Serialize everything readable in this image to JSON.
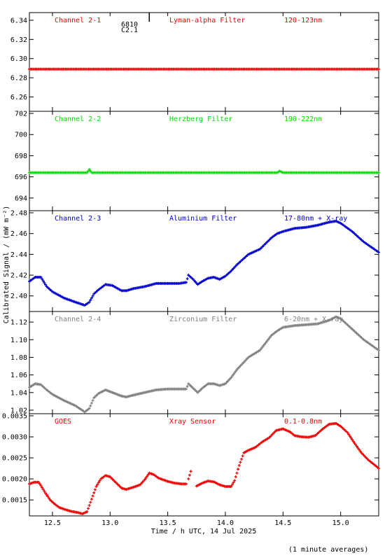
{
  "figure": {
    "ylabel": "Calibrated Signal / (mW m⁻²)",
    "xlabel": "Time / h UTC, 14 Jul 2025",
    "footer": "(1 minute averages)",
    "marker": {
      "label1": "6810",
      "label2": "C2.1",
      "x": 13.34
    }
  },
  "chart_data": [
    {
      "type": "scatter",
      "color": "#ee0000",
      "header": [
        "Channel 2-1",
        "Lyman-alpha Filter",
        "120-123nm"
      ],
      "xlim": [
        12.3,
        15.33
      ],
      "ylim": [
        6.245,
        6.348
      ],
      "yticks": [
        6.26,
        6.28,
        6.3,
        6.32,
        6.34
      ],
      "ytick_labels": [
        "6.26",
        "6.28",
        "6.30",
        "6.32",
        "6.34"
      ],
      "x": [
        12.3,
        15.33
      ],
      "y": [
        6.289,
        6.289
      ]
    },
    {
      "type": "scatter",
      "color": "#00dd00",
      "header": [
        "Channel 2-2",
        "Herzberg Filter",
        "190-222nm"
      ],
      "xlim": [
        12.3,
        15.33
      ],
      "ylim": [
        692.8,
        702.2
      ],
      "yticks": [
        694,
        696,
        698,
        700,
        702
      ],
      "ytick_labels": [
        "694",
        "696",
        "698",
        "700",
        "702"
      ],
      "x": [
        12.3,
        12.8,
        12.82,
        12.84,
        14.0,
        14.45,
        14.47,
        14.5,
        15.33
      ],
      "y": [
        696.4,
        696.4,
        696.7,
        696.4,
        696.4,
        696.4,
        696.55,
        696.4,
        696.4
      ]
    },
    {
      "type": "scatter",
      "color": "#0000cc",
      "header": [
        "Channel 2-3",
        "Aluminium Filter",
        "17-80nm + X-ray"
      ],
      "xlim": [
        12.3,
        15.33
      ],
      "ylim": [
        2.385,
        2.482
      ],
      "yticks": [
        2.4,
        2.42,
        2.44,
        2.46,
        2.48
      ],
      "ytick_labels": [
        "2.40",
        "2.42",
        "2.44",
        "2.46",
        "2.48"
      ],
      "x": [
        12.3,
        12.35,
        12.4,
        12.45,
        12.5,
        12.6,
        12.7,
        12.78,
        12.82,
        12.86,
        12.9,
        12.96,
        13.02,
        13.1,
        13.14,
        13.2,
        13.3,
        13.4,
        13.5,
        13.6,
        13.66,
        13.68,
        13.72,
        13.76,
        13.8,
        13.85,
        13.9,
        13.95,
        14.0,
        14.05,
        14.1,
        14.2,
        14.3,
        14.4,
        14.45,
        14.5,
        14.6,
        14.7,
        14.8,
        14.9,
        14.96,
        15.0,
        15.1,
        15.2,
        15.33
      ],
      "y": [
        2.414,
        2.418,
        2.418,
        2.409,
        2.404,
        2.398,
        2.394,
        2.391,
        2.394,
        2.402,
        2.406,
        2.411,
        2.41,
        2.405,
        2.405,
        2.407,
        2.409,
        2.412,
        2.412,
        2.412,
        2.413,
        2.42,
        2.416,
        2.411,
        2.414,
        2.417,
        2.418,
        2.416,
        2.419,
        2.424,
        2.43,
        2.44,
        2.445,
        2.456,
        2.46,
        2.462,
        2.465,
        2.466,
        2.468,
        2.471,
        2.472,
        2.47,
        2.462,
        2.452,
        2.442
      ]
    },
    {
      "type": "scatter",
      "color": "#808080",
      "header": [
        "Channel 2-4",
        "Zirconium Filter",
        "6-20nm + X-ray"
      ],
      "xlim": [
        12.3,
        15.33
      ],
      "ylim": [
        1.016,
        1.132
      ],
      "yticks": [
        1.02,
        1.04,
        1.06,
        1.08,
        1.1,
        1.12
      ],
      "ytick_labels": [
        "1.02",
        "1.04",
        "1.06",
        "1.08",
        "1.10",
        "1.12"
      ],
      "x": [
        12.3,
        12.35,
        12.4,
        12.45,
        12.5,
        12.6,
        12.7,
        12.78,
        12.82,
        12.86,
        12.9,
        12.96,
        13.02,
        13.1,
        13.14,
        13.2,
        13.3,
        13.4,
        13.5,
        13.6,
        13.66,
        13.68,
        13.72,
        13.76,
        13.8,
        13.85,
        13.9,
        13.95,
        14.0,
        14.05,
        14.1,
        14.2,
        14.3,
        14.4,
        14.45,
        14.5,
        14.6,
        14.7,
        14.8,
        14.9,
        14.96,
        15.0,
        15.1,
        15.2,
        15.33
      ],
      "y": [
        1.046,
        1.05,
        1.049,
        1.043,
        1.038,
        1.031,
        1.025,
        1.018,
        1.022,
        1.034,
        1.039,
        1.043,
        1.04,
        1.036,
        1.035,
        1.037,
        1.04,
        1.043,
        1.044,
        1.044,
        1.044,
        1.05,
        1.045,
        1.04,
        1.045,
        1.05,
        1.05,
        1.048,
        1.05,
        1.057,
        1.066,
        1.08,
        1.088,
        1.105,
        1.11,
        1.114,
        1.116,
        1.117,
        1.118,
        1.122,
        1.126,
        1.124,
        1.112,
        1.1,
        1.088
      ]
    },
    {
      "type": "scatter",
      "color": "#ee0000",
      "header": [
        "GOES",
        "Xray Sensor",
        "0.1-0.8nm"
      ],
      "xlim": [
        12.3,
        15.33
      ],
      "ylim": [
        0.00112,
        0.00355
      ],
      "yticks": [
        0.0015,
        0.002,
        0.0025,
        0.003,
        0.0035
      ],
      "ytick_labels": [
        "0.0015",
        "0.0020",
        "0.0025",
        "0.0030",
        "0.0035"
      ],
      "segments": [
        {
          "x": [
            12.3,
            12.34,
            12.38,
            12.4,
            12.44,
            12.48,
            12.52,
            12.56,
            12.6,
            12.66,
            12.72,
            12.76,
            12.8,
            12.84,
            12.88,
            12.92,
            12.96,
            13.0,
            13.04,
            13.1,
            13.14,
            13.2,
            13.26,
            13.3,
            13.34,
            13.38,
            13.42,
            13.5,
            13.56,
            13.62,
            13.66
          ],
          "y": [
            0.00188,
            0.00192,
            0.00192,
            0.00184,
            0.00166,
            0.0015,
            0.0014,
            0.00132,
            0.00128,
            0.00123,
            0.0012,
            0.00117,
            0.00122,
            0.00152,
            0.00182,
            0.002,
            0.00208,
            0.00205,
            0.00194,
            0.00178,
            0.00175,
            0.0018,
            0.00186,
            0.00198,
            0.00214,
            0.0021,
            0.00202,
            0.00194,
            0.0019,
            0.00188,
            0.00188
          ]
        },
        {
          "x": [
            13.68,
            13.7
          ],
          "y": [
            0.002,
            0.00218
          ]
        },
        {
          "x": [
            13.75,
            13.8,
            13.85,
            13.9,
            13.95,
            14.0,
            14.05,
            14.08,
            14.12,
            14.16,
            14.2,
            14.26,
            14.32,
            14.38,
            14.44,
            14.5,
            14.56,
            14.6,
            14.66,
            14.72,
            14.78,
            14.84,
            14.9,
            14.96,
            15.0,
            15.06,
            15.12,
            15.18,
            15.24,
            15.3,
            15.33
          ],
          "y": [
            0.00183,
            0.0019,
            0.00195,
            0.00193,
            0.00186,
            0.00182,
            0.00182,
            0.00196,
            0.00232,
            0.00262,
            0.00268,
            0.00275,
            0.00288,
            0.00298,
            0.00315,
            0.00319,
            0.00312,
            0.00303,
            0.003,
            0.00299,
            0.00303,
            0.00318,
            0.0033,
            0.00332,
            0.00325,
            0.0031,
            0.00285,
            0.00262,
            0.00245,
            0.00232,
            0.00225
          ]
        }
      ]
    }
  ],
  "xaxis": {
    "ticks": [
      12.5,
      13.0,
      13.5,
      14.0,
      14.5,
      15.0
    ],
    "tick_labels": [
      "12.5",
      "13.0",
      "13.5",
      "14.0",
      "14.5",
      "15.0"
    ]
  }
}
